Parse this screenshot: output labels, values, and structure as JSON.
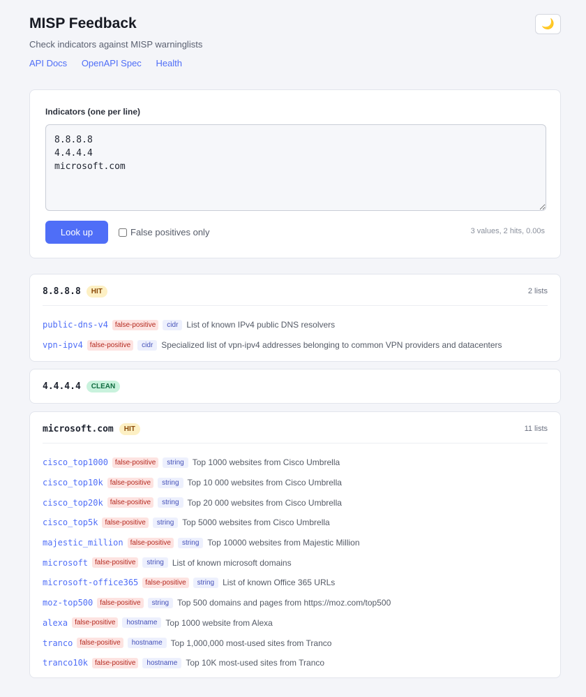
{
  "header": {
    "title": "MISP Feedback",
    "subtitle": "Check indicators against MISP warninglists",
    "links": [
      "API Docs",
      "OpenAPI Spec",
      "Health"
    ],
    "theme_icon": "🌙"
  },
  "form": {
    "label": "Indicators (one per line)",
    "value": "8.8.8.8\n4.4.4.4\nmicrosoft.com",
    "button": "Look up",
    "checkbox_label": "False positives only",
    "checkbox_checked": false,
    "stats": "3 values, 2 hits, 0.00s"
  },
  "results": [
    {
      "indicator": "8.8.8.8",
      "status": "HIT",
      "count": "2 lists",
      "lists": [
        {
          "name": "public-dns-v4",
          "tag": "false-positive",
          "type": "cidr",
          "desc": "List of known IPv4 public DNS resolvers"
        },
        {
          "name": "vpn-ipv4",
          "tag": "false-positive",
          "type": "cidr",
          "desc": "Specialized list of vpn-ipv4 addresses belonging to common VPN providers and datacenters"
        }
      ]
    },
    {
      "indicator": "4.4.4.4",
      "status": "CLEAN",
      "count": "",
      "lists": []
    },
    {
      "indicator": "microsoft.com",
      "status": "HIT",
      "count": "11 lists",
      "lists": [
        {
          "name": "cisco_top1000",
          "tag": "false-positive",
          "type": "string",
          "desc": "Top 1000 websites from Cisco Umbrella"
        },
        {
          "name": "cisco_top10k",
          "tag": "false-positive",
          "type": "string",
          "desc": "Top 10 000 websites from Cisco Umbrella"
        },
        {
          "name": "cisco_top20k",
          "tag": "false-positive",
          "type": "string",
          "desc": "Top 20 000 websites from Cisco Umbrella"
        },
        {
          "name": "cisco_top5k",
          "tag": "false-positive",
          "type": "string",
          "desc": "Top 5000 websites from Cisco Umbrella"
        },
        {
          "name": "majestic_million",
          "tag": "false-positive",
          "type": "string",
          "desc": "Top 10000 websites from Majestic Million"
        },
        {
          "name": "microsoft",
          "tag": "false-positive",
          "type": "string",
          "desc": "List of known microsoft domains"
        },
        {
          "name": "microsoft-office365",
          "tag": "false-positive",
          "type": "string",
          "desc": "List of known Office 365 URLs"
        },
        {
          "name": "moz-top500",
          "tag": "false-positive",
          "type": "string",
          "desc": "Top 500 domains and pages from https://moz.com/top500"
        },
        {
          "name": "alexa",
          "tag": "false-positive",
          "type": "hostname",
          "desc": "Top 1000 website from Alexa"
        },
        {
          "name": "tranco",
          "tag": "false-positive",
          "type": "hostname",
          "desc": "Top 1,000,000 most-used sites from Tranco"
        },
        {
          "name": "tranco10k",
          "tag": "false-positive",
          "type": "hostname",
          "desc": "Top 10K most-used sites from Tranco"
        }
      ]
    }
  ]
}
